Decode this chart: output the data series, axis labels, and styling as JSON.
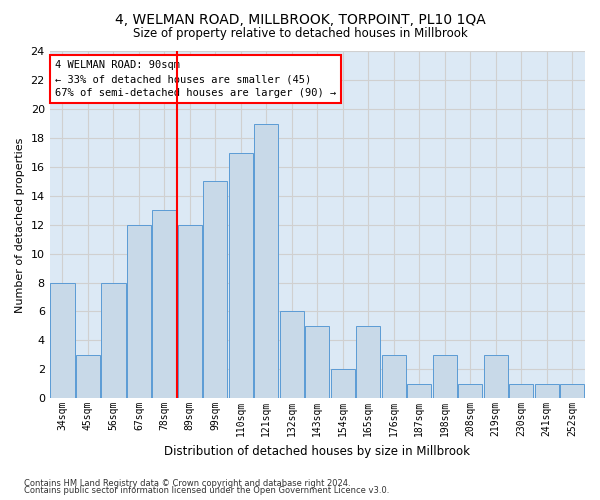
{
  "title": "4, WELMAN ROAD, MILLBROOK, TORPOINT, PL10 1QA",
  "subtitle": "Size of property relative to detached houses in Millbrook",
  "xlabel": "Distribution of detached houses by size in Millbrook",
  "ylabel": "Number of detached properties",
  "categories": [
    "34sqm",
    "45sqm",
    "56sqm",
    "67sqm",
    "78sqm",
    "89sqm",
    "99sqm",
    "110sqm",
    "121sqm",
    "132sqm",
    "143sqm",
    "154sqm",
    "165sqm",
    "176sqm",
    "187sqm",
    "198sqm",
    "208sqm",
    "219sqm",
    "230sqm",
    "241sqm",
    "252sqm"
  ],
  "values": [
    8,
    3,
    8,
    12,
    13,
    12,
    15,
    17,
    19,
    6,
    5,
    2,
    5,
    3,
    1,
    3,
    1,
    3,
    1,
    1,
    1
  ],
  "bar_color": "#c8d9e8",
  "bar_edge_color": "#5b9bd5",
  "vline_index": 5,
  "vline_color": "red",
  "ylim": [
    0,
    24
  ],
  "yticks": [
    0,
    2,
    4,
    6,
    8,
    10,
    12,
    14,
    16,
    18,
    20,
    22,
    24
  ],
  "annotation_title": "4 WELMAN ROAD: 90sqm",
  "annotation_line1": "← 33% of detached houses are smaller (45)",
  "annotation_line2": "67% of semi-detached houses are larger (90) →",
  "annotation_box_color": "white",
  "annotation_box_edge": "red",
  "grid_color": "#d0d0d0",
  "background_color": "#dce9f5",
  "footer1": "Contains HM Land Registry data © Crown copyright and database right 2024.",
  "footer2": "Contains public sector information licensed under the Open Government Licence v3.0."
}
